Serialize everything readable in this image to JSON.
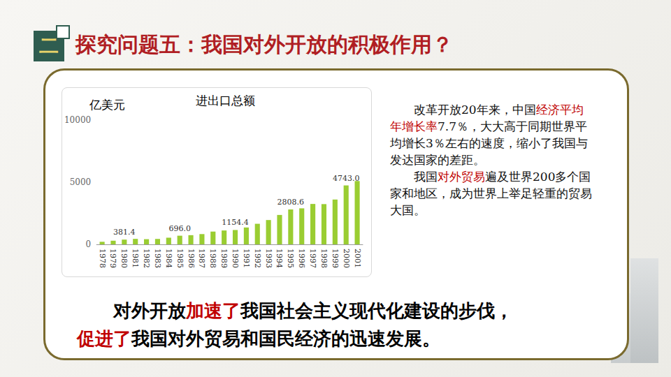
{
  "slide": {
    "badge": "二",
    "title": "探究问题五：我国对外开放的积极作用？",
    "paragraphs": [
      [
        {
          "text": "改革开放20年来，中国"
        },
        {
          "text": "经济平均年增长率",
          "color": "#c00000"
        },
        {
          "text": "7.7％，大大高于同期世界平均增长3％左右的速度，缩小了我国与发达国家的差距。"
        }
      ],
      [
        {
          "text": "我国"
        },
        {
          "text": "对外贸易",
          "color": "#c00000"
        },
        {
          "text": "遍及世界200多个国家和地区，成为世界上举足轻重的贸易大国。"
        }
      ]
    ],
    "conclusion": [
      {
        "text": "对外开放"
      },
      {
        "text": "加速了",
        "color": "#c00000"
      },
      {
        "text": "我国社会主义现代化建设的步伐，"
      },
      {
        "text": "促进了",
        "color": "#c00000"
      },
      {
        "text": "我国对外贸易和国民经济的迅速发展。"
      }
    ]
  },
  "chart_data": {
    "type": "bar",
    "title": "进出口总额",
    "y_label": "亿美元",
    "categories": [
      "1978",
      "1979",
      "1980",
      "1981",
      "1982",
      "1983",
      "1984",
      "1985",
      "1986",
      "1987",
      "1988",
      "1989",
      "1990",
      "1991",
      "1992",
      "1993",
      "1994",
      "1995",
      "1996",
      "1997",
      "1998",
      "1999",
      "2000",
      "2001"
    ],
    "values": [
      206.4,
      293.3,
      381.4,
      440.3,
      416.1,
      436.2,
      535.5,
      696.0,
      738.5,
      826.5,
      1027.9,
      1116.8,
      1154.4,
      1357.0,
      1655.3,
      1957.0,
      2366.2,
      2808.6,
      2898.8,
      3251.6,
      3239.5,
      3606.3,
      4743.0,
      5097.7
    ],
    "value_labels": [
      null,
      null,
      "381.4",
      null,
      null,
      null,
      null,
      "696.0",
      null,
      null,
      null,
      null,
      "1154.4",
      null,
      null,
      null,
      null,
      "2808.6",
      null,
      null,
      null,
      null,
      "4743.0",
      null
    ],
    "color": "#9acd32",
    "ylim": [
      0,
      10000
    ],
    "yticks": [
      0,
      5000,
      10000
    ],
    "grid": false,
    "data_labels": true
  }
}
